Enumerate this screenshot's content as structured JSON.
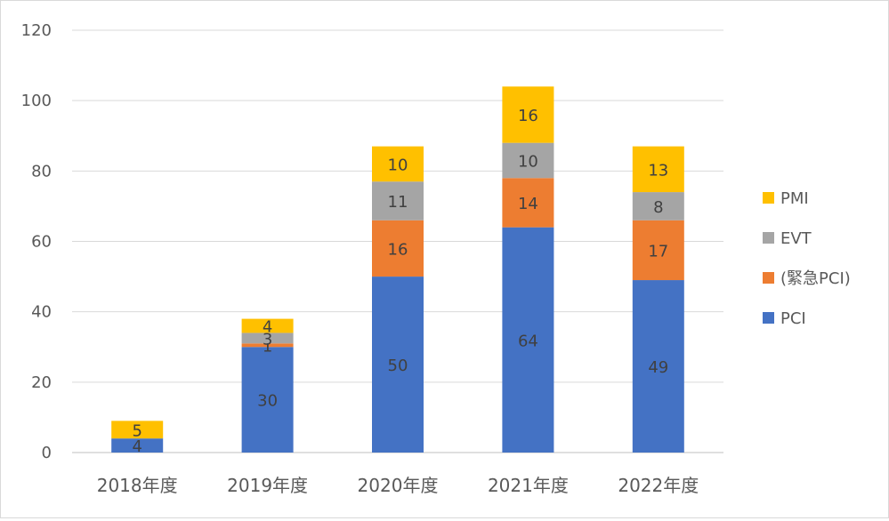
{
  "chart_data": {
    "type": "bar",
    "stacked": true,
    "categories": [
      "2018年度",
      "2019年度",
      "2020年度",
      "2021年度",
      "2022年度"
    ],
    "series": [
      {
        "name": "PCI",
        "color": "#4472C4",
        "values": [
          4,
          30,
          50,
          64,
          49
        ],
        "labels": [
          "4",
          "30",
          "50",
          "64",
          "49"
        ]
      },
      {
        "name": "(緊急PCI)",
        "color": "#ED7D31",
        "values": [
          0,
          1,
          16,
          14,
          17
        ],
        "labels": [
          "",
          "1",
          "16",
          "14",
          "17"
        ]
      },
      {
        "name": "EVT",
        "color": "#A5A5A5",
        "values": [
          0,
          3,
          11,
          10,
          8
        ],
        "labels": [
          "",
          "3",
          "11",
          "10",
          "8"
        ]
      },
      {
        "name": "PMI",
        "color": "#FFC000",
        "values": [
          5,
          4,
          10,
          16,
          13
        ],
        "labels": [
          "5",
          "4",
          "10",
          "16",
          "13"
        ]
      }
    ],
    "legend_order": [
      "PMI",
      "EVT",
      "(緊急PCI)",
      "PCI"
    ],
    "ylim": [
      0,
      120
    ],
    "yticks": [
      0,
      20,
      40,
      60,
      80,
      100,
      120
    ],
    "grid": true,
    "legend_position": "right",
    "title": "",
    "xlabel": "",
    "ylabel": ""
  }
}
